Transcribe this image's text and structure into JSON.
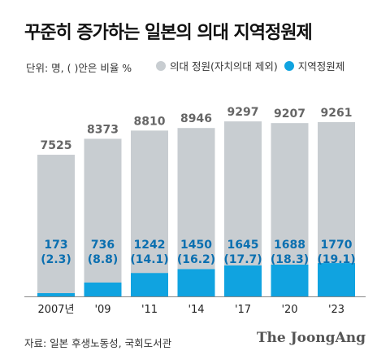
{
  "title": "꾸준히 증가하는 일본의 의대 지역정원제",
  "unit_note": "단위: 명, ( )안은 비율 %",
  "source": "자료: 일본 후생노동성, 국회도서관",
  "brand": "The JoongAng",
  "colors": {
    "total_bar": "#c8cdd1",
    "regional_bar": "#10a3e0",
    "total_label": "#666666",
    "regional_label": "#0a6fb0"
  },
  "chart_data": {
    "type": "bar",
    "categories": [
      "2007년",
      "'09",
      "'11",
      "'14",
      "'17",
      "'20",
      "'23"
    ],
    "series": [
      {
        "name": "의대 정원(자치의대 제외)",
        "values": [
          7525,
          8373,
          8810,
          8946,
          9297,
          9207,
          9261
        ]
      },
      {
        "name": "지역정원제",
        "values": [
          173,
          736,
          1242,
          1450,
          1645,
          1688,
          1770
        ],
        "ratios": [
          "(2.3)",
          "(8.8)",
          "(14.1)",
          "(16.2)",
          "(17.7)",
          "(18.3)",
          "(19.1)"
        ]
      }
    ],
    "ylim": [
      0,
      9300
    ],
    "grid": false,
    "legend_position": "top"
  }
}
